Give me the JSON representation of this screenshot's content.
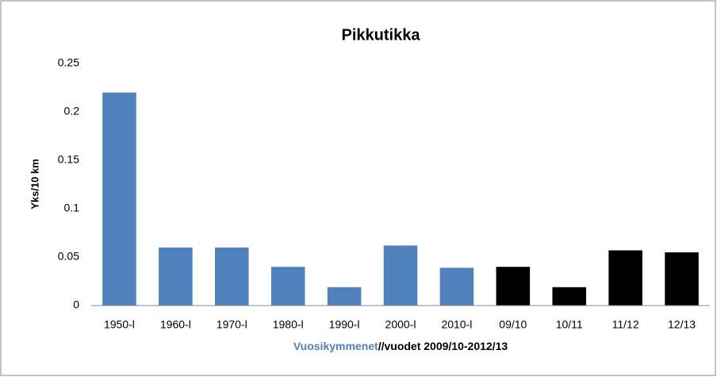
{
  "chart_data": {
    "type": "bar",
    "title": "Pikkutikka",
    "ylabel": "Yks/10 km",
    "xlabel": [
      "Vuosikymmenet",
      "//vuodet 2009/10-2012/13"
    ],
    "xlabel_colors": [
      "#4f81bd",
      "#000000"
    ],
    "categories": [
      "1950-l",
      "1960-l",
      "1970-l",
      "1980-l",
      "1990-l",
      "2000-l",
      "2010-l",
      "09/10",
      "10/11",
      "11/12",
      "12/13"
    ],
    "values": [
      0.22,
      0.06,
      0.06,
      0.04,
      0.019,
      0.062,
      0.039,
      0.04,
      0.019,
      0.057,
      0.055
    ],
    "colors": [
      "#4f81bd",
      "#4f81bd",
      "#4f81bd",
      "#4f81bd",
      "#4f81bd",
      "#4f81bd",
      "#4f81bd",
      "#000000",
      "#000000",
      "#000000",
      "#000000"
    ],
    "ylim": [
      0,
      0.25
    ],
    "yticks": [
      0,
      0.05,
      0.1,
      0.15,
      0.2,
      0.25
    ],
    "grid": false
  }
}
